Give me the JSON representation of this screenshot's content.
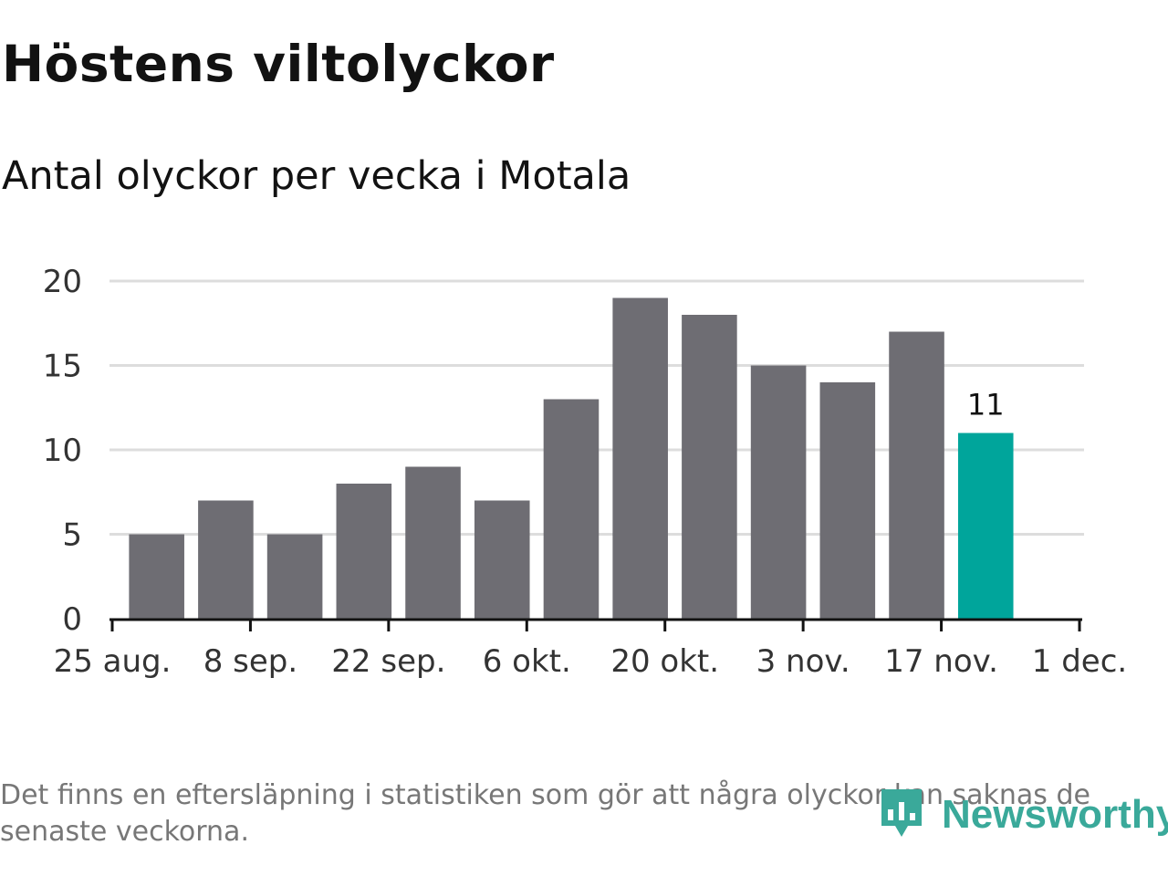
{
  "header": {
    "title": "Höstens viltolyckor",
    "subtitle": "Antal olyckor per vecka i Motala"
  },
  "footer": {
    "note_line1": "Det finns en eftersläpning i statistiken som gör att några olyckor kan saknas de",
    "note_line2": "senaste veckorna.",
    "brand": "Newsworthy",
    "brand_icon": "bar-chart-location-icon"
  },
  "colors": {
    "bar": "#6e6d73",
    "highlight": "#00a59b",
    "grid": "#dddddd",
    "axis": "#121212",
    "brand": "#3aa99a"
  },
  "chart_data": {
    "type": "bar",
    "title": "Höstens viltolyckor",
    "subtitle": "Antal olyckor per vecka i Motala",
    "xlabel": "",
    "ylabel": "",
    "ylim": [
      0,
      20
    ],
    "y_ticks": [
      0,
      5,
      10,
      15,
      20
    ],
    "x_range": [
      "2019-08-25",
      "2019-12-01"
    ],
    "x_ticks": [
      {
        "date": "2019-08-25",
        "label": "25 aug."
      },
      {
        "date": "2019-09-08",
        "label": "8 sep."
      },
      {
        "date": "2019-09-22",
        "label": "22 sep."
      },
      {
        "date": "2019-10-06",
        "label": "6 okt."
      },
      {
        "date": "2019-10-20",
        "label": "20 okt."
      },
      {
        "date": "2019-11-03",
        "label": "3 nov."
      },
      {
        "date": "2019-11-17",
        "label": "17 nov."
      },
      {
        "date": "2019-12-01",
        "label": "1 dec."
      }
    ],
    "x": [
      "2019-08-26",
      "2019-09-02",
      "2019-09-09",
      "2019-09-16",
      "2019-09-23",
      "2019-09-30",
      "2019-10-07",
      "2019-10-14",
      "2019-10-21",
      "2019-10-28",
      "2019-11-04",
      "2019-11-11",
      "2019-11-18"
    ],
    "values": [
      5,
      7,
      5,
      8,
      9,
      7,
      13,
      19,
      18,
      15,
      14,
      17,
      11
    ],
    "highlight_index": 12,
    "data_labels": [
      {
        "index": 12,
        "text": "11"
      }
    ],
    "grid": true,
    "legend": "none"
  }
}
